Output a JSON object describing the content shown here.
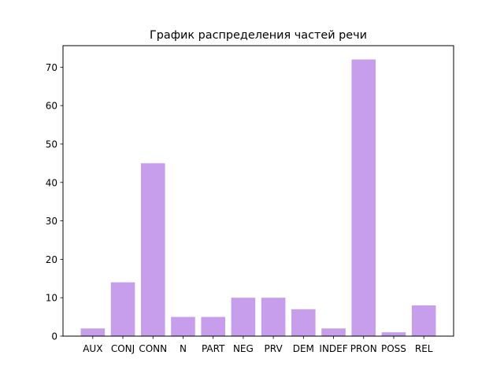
{
  "chart_data": {
    "type": "bar",
    "title": "График распределения частей речи",
    "xlabel": "",
    "ylabel": "",
    "categories": [
      "AUX",
      "CONJ",
      "CONN",
      "N",
      "PART",
      "NEG",
      "PRV",
      "DEM",
      "INDEF",
      "PRON",
      "POSS",
      "REL"
    ],
    "values": [
      2,
      14,
      45,
      5,
      5,
      10,
      10,
      7,
      2,
      72,
      1,
      8
    ],
    "ylim": [
      0,
      75.6
    ],
    "yticks": [
      0,
      10,
      20,
      30,
      40,
      50,
      60,
      70
    ],
    "grid": false,
    "bar_color": "#c69eec",
    "axis_color": "#000000"
  }
}
